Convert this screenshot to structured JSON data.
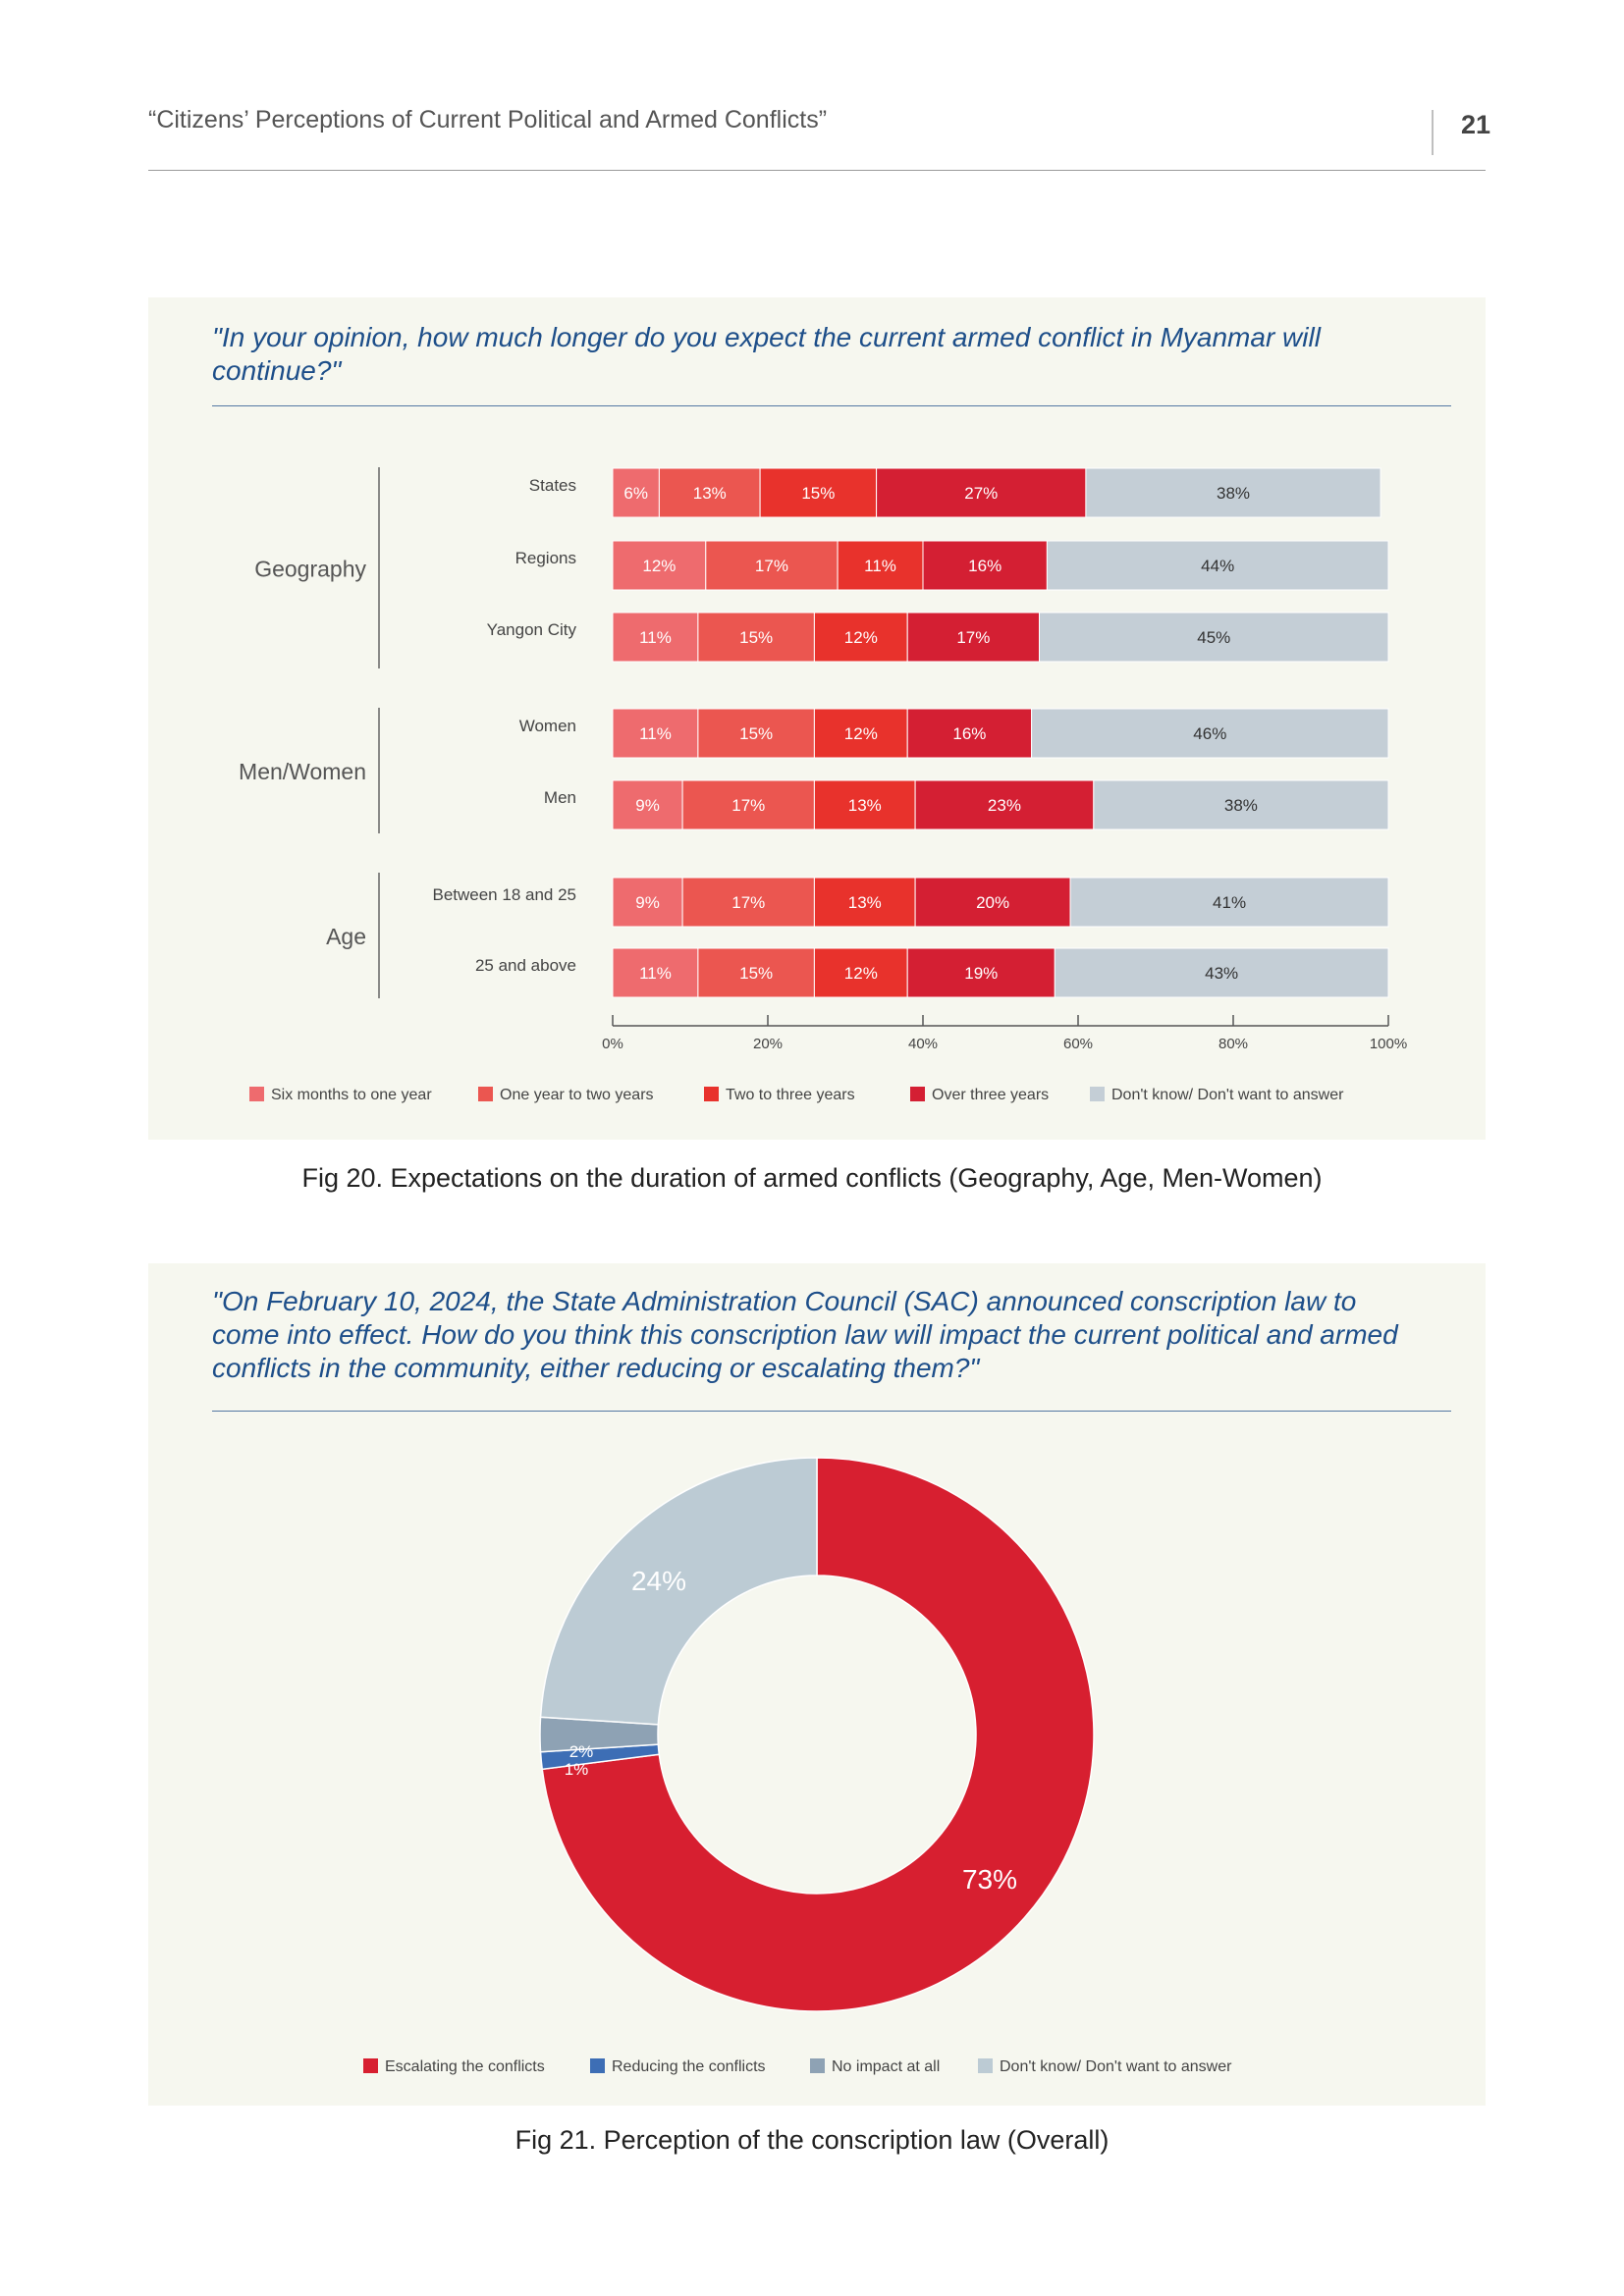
{
  "header": {
    "title": "“Citizens’ Perceptions of Current Political and Armed Conflicts”",
    "page_number": "21"
  },
  "figure20": {
    "question": "\"In your opinion, how much longer do you expect the current armed conflict in Myanmar will continue?\"",
    "caption": "Fig 20. Expectations on the duration of armed conflicts (Geography, Age, Men-Women)"
  },
  "figure21": {
    "question": "\"On February 10, 2024, the State Administration Council (SAC) announced conscription law to come into effect. How do you think this conscription law will impact the current political and armed conflicts in the community, either reducing or escalating them?\"",
    "caption": "Fig 21. Perception of the conscription law (Overall)"
  },
  "colors": {
    "six_months": "#ee6b6e",
    "one_to_two": "#eb5650",
    "two_to_three": "#e8322c",
    "over_three": "#d41f33",
    "dont_know": "#c4ced6",
    "escalating": "#d71f30",
    "reducing": "#3d6eb5",
    "no_impact": "#8ea2b4",
    "pie_dont_know": "#bccbd4"
  },
  "chart_data": [
    {
      "type": "bar",
      "orientation": "horizontal",
      "stacked": true,
      "xlim": [
        0,
        100
      ],
      "x_ticks": [
        "0%",
        "20%",
        "40%",
        "60%",
        "80%",
        "100%"
      ],
      "legend_position": "bottom",
      "groups": [
        {
          "label": "Geography",
          "categories": [
            "States",
            "Regions",
            "Yangon City"
          ]
        },
        {
          "label": "Men/Women",
          "categories": [
            "Women",
            "Men"
          ]
        },
        {
          "label": "Age",
          "categories": [
            "Between 18 and 25",
            "25 and above"
          ]
        }
      ],
      "categories": [
        "States",
        "Regions",
        "Yangon City",
        "Women",
        "Men",
        "Between 18 and 25",
        "25 and above"
      ],
      "series": [
        {
          "name": "Six months to one year",
          "color": "#ee6b6e",
          "values": [
            6,
            12,
            11,
            11,
            9,
            9,
            11
          ]
        },
        {
          "name": "One year to two years",
          "color": "#eb5650",
          "values": [
            13,
            17,
            15,
            15,
            17,
            17,
            15
          ]
        },
        {
          "name": "Two to three years",
          "color": "#e8322c",
          "values": [
            15,
            11,
            12,
            12,
            13,
            13,
            12
          ]
        },
        {
          "name": "Over three years",
          "color": "#d41f33",
          "values": [
            27,
            16,
            17,
            16,
            23,
            20,
            19
          ]
        },
        {
          "name": "Don't know/ Don't want to answer",
          "color": "#c4ced6",
          "values": [
            38,
            44,
            45,
            46,
            38,
            41,
            43
          ]
        }
      ]
    },
    {
      "type": "pie",
      "donut": true,
      "legend_position": "bottom",
      "slices": [
        {
          "name": "Escalating the conflicts",
          "value": 73,
          "label": "73%",
          "color": "#d71f30"
        },
        {
          "name": "Reducing the conflicts",
          "value": 1,
          "label": "1%",
          "color": "#3d6eb5"
        },
        {
          "name": "No impact at all",
          "value": 2,
          "label": "2%",
          "color": "#8ea2b4"
        },
        {
          "name": "Don't know/ Don't want to answer",
          "value": 24,
          "label": "24%",
          "color": "#bccbd4"
        }
      ]
    }
  ]
}
